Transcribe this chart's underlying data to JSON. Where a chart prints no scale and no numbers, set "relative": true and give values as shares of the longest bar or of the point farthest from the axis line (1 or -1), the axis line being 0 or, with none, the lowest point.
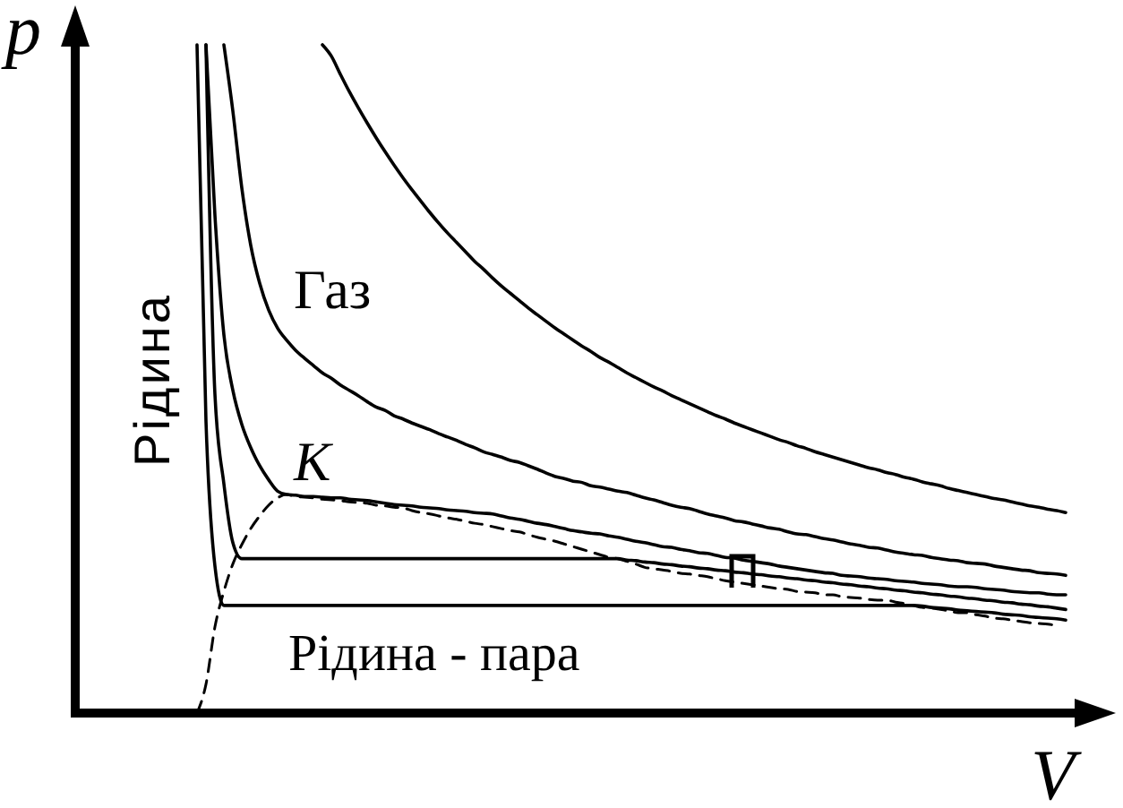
{
  "chart_data": {
    "type": "line",
    "relative": true,
    "line_style": "solid",
    "xlabel": "V",
    "ylabel": "p",
    "annotations": [
      "Рідина",
      "Газ",
      "К",
      "Рідина - пара"
    ],
    "categories": [
      null,
      null,
      null,
      null,
      null,
      null,
      null,
      null,
      null,
      null,
      null,
      null,
      null,
      null,
      null,
      null,
      null,
      null,
      null,
      null,
      null,
      null,
      null,
      null,
      null,
      null,
      null,
      null,
      null,
      null,
      null,
      null,
      null,
      null,
      null,
      null,
      null,
      null,
      null,
      null,
      null,
      null,
      null,
      null,
      null,
      null,
      null,
      null,
      null,
      null,
      null,
      null,
      null,
      null,
      null,
      null,
      null,
      null,
      null,
      null,
      null,
      null,
      null,
      null,
      null,
      null,
      null,
      null,
      null,
      null,
      null,
      null,
      null,
      null,
      null,
      null,
      null,
      null,
      null,
      null,
      null,
      null,
      null,
      null,
      null,
      null,
      null,
      null,
      null,
      null,
      null,
      null,
      null,
      null,
      null,
      null,
      null,
      null
    ],
    "series": [
      {
        "color": "#000000",
        "values": [
          null,
          null,
          null,
          null,
          null,
          null,
          null,
          null,
          null,
          null,
          null,
          null,
          null,
          null,
          1,
          0.983,
          0.956,
          0.93,
          0.906,
          0.883,
          0.861,
          0.84,
          0.82,
          0.801,
          0.783,
          0.766,
          0.749,
          0.733,
          0.718,
          0.704,
          0.69,
          0.676,
          0.664,
          0.651,
          0.639,
          0.628,
          0.617,
          0.606,
          0.596,
          0.586,
          0.576,
          0.567,
          0.558,
          0.549,
          0.541,
          0.532,
          0.525,
          0.517,
          0.509,
          0.502,
          0.495,
          0.488,
          0.482,
          0.475,
          0.469,
          0.463,
          0.457,
          0.451,
          0.445,
          0.44,
          0.434,
          0.429,
          0.424,
          0.419,
          0.414,
          0.409,
          0.405,
          0.4,
          0.396,
          0.391,
          0.387,
          0.383,
          0.379,
          0.375,
          0.371,
          0.367,
          0.364,
          0.36,
          0.357,
          0.353,
          0.35,
          0.346,
          0.343,
          0.34,
          0.336,
          0.333,
          0.33,
          0.327,
          0.324,
          0.321,
          0.319,
          0.316,
          0.313,
          0.31,
          0.308,
          0.305,
          0.303,
          0.3
        ]
      },
      {
        "color": "#000000",
        "values": [
          null,
          null,
          null,
          1,
          0.901,
          0.786,
          0.7,
          0.643,
          0.603,
          0.576,
          0.558,
          0.543,
          0.531,
          0.52,
          0.509,
          0.501,
          0.491,
          0.483,
          0.475,
          0.466,
          0.458,
          0.453,
          0.445,
          0.44,
          0.434,
          0.429,
          0.424,
          0.418,
          0.413,
          0.408,
          0.402,
          0.397,
          0.391,
          0.387,
          0.383,
          0.378,
          0.375,
          0.37,
          0.365,
          0.359,
          0.354,
          0.351,
          0.347,
          0.345,
          0.34,
          0.338,
          0.335,
          0.332,
          0.33,
          0.326,
          0.322,
          0.319,
          0.315,
          0.311,
          0.308,
          0.306,
          0.302,
          0.298,
          0.295,
          0.292,
          0.288,
          0.286,
          0.283,
          0.28,
          0.277,
          0.275,
          0.271,
          0.268,
          0.267,
          0.264,
          0.261,
          0.259,
          0.256,
          0.253,
          0.251,
          0.248,
          0.247,
          0.244,
          0.241,
          0.239,
          0.237,
          0.236,
          0.233,
          0.231,
          0.229,
          0.228,
          0.225,
          0.224,
          0.223,
          0.22,
          0.218,
          0.216,
          0.214,
          0.213,
          0.21,
          0.209,
          0.208,
          0.206
        ]
      },
      {
        "color": "#000000",
        "values": [
          null,
          1,
          0.745,
          0.566,
          0.483,
          0.432,
          0.397,
          0.37,
          0.349,
          0.332,
          0.327,
          0.326,
          0.324,
          0.324,
          0.323,
          0.322,
          0.322,
          0.32,
          0.319,
          0.318,
          0.316,
          0.314,
          0.312,
          0.311,
          0.31,
          0.308,
          0.307,
          0.306,
          0.304,
          0.303,
          0.302,
          0.3,
          0.299,
          0.298,
          0.295,
          0.292,
          0.29,
          0.287,
          0.284,
          0.282,
          0.279,
          0.276,
          0.273,
          0.271,
          0.269,
          0.268,
          0.265,
          0.263,
          0.26,
          0.257,
          0.255,
          0.252,
          0.249,
          0.248,
          0.245,
          0.243,
          0.24,
          0.239,
          0.236,
          0.233,
          0.232,
          0.229,
          0.227,
          0.225,
          0.223,
          0.22,
          0.218,
          0.216,
          0.214,
          0.212,
          0.21,
          0.209,
          0.206,
          0.205,
          0.204,
          0.202,
          0.201,
          0.2,
          0.198,
          0.197,
          0.196,
          0.194,
          0.193,
          0.192,
          0.19,
          0.189,
          0.189,
          0.188,
          0.186,
          0.185,
          0.184,
          0.182,
          0.181,
          0.18,
          0.18,
          0.178,
          0.177,
          0.177
        ]
      },
      {
        "color": "#000000",
        "values": [
          null,
          1,
          0.477,
          0.343,
          0.255,
          0.231,
          0.231,
          0.231,
          0.231,
          0.231,
          0.231,
          0.231,
          0.231,
          0.231,
          0.231,
          0.231,
          0.231,
          0.231,
          0.231,
          0.231,
          0.231,
          0.231,
          0.231,
          0.231,
          0.231,
          0.231,
          0.231,
          0.231,
          0.231,
          0.231,
          0.231,
          0.231,
          0.231,
          0.231,
          0.231,
          0.231,
          0.231,
          0.231,
          0.231,
          0.231,
          0.231,
          0.231,
          0.231,
          0.231,
          0.231,
          0.231,
          0.231,
          0.231,
          0.229,
          0.228,
          0.226,
          0.225,
          0.223,
          0.222,
          0.22,
          0.219,
          0.217,
          0.216,
          0.214,
          0.213,
          0.211,
          0.21,
          0.208,
          0.207,
          0.205,
          0.204,
          0.202,
          0.201,
          0.199,
          0.198,
          0.196,
          0.195,
          0.193,
          0.192,
          0.19,
          0.189,
          0.187,
          0.186,
          0.184,
          0.183,
          0.181,
          0.18,
          0.178,
          0.177,
          0.175,
          0.174,
          0.172,
          0.171,
          0.169,
          0.168,
          0.166,
          0.165,
          0.163,
          0.162,
          0.16,
          0.159,
          0.157,
          0.155
        ]
      },
      {
        "color": "#000000",
        "values": [
          1,
          0.437,
          0.22,
          0.161,
          0.161,
          0.161,
          0.161,
          0.161,
          0.161,
          0.161,
          0.161,
          0.161,
          0.161,
          0.161,
          0.161,
          0.161,
          0.161,
          0.161,
          0.161,
          0.161,
          0.161,
          0.161,
          0.161,
          0.161,
          0.161,
          0.161,
          0.161,
          0.161,
          0.161,
          0.161,
          0.161,
          0.161,
          0.161,
          0.161,
          0.161,
          0.161,
          0.161,
          0.161,
          0.161,
          0.161,
          0.161,
          0.161,
          0.161,
          0.161,
          0.161,
          0.161,
          0.161,
          0.161,
          0.161,
          0.161,
          0.161,
          0.161,
          0.161,
          0.161,
          0.161,
          0.161,
          0.161,
          0.161,
          0.161,
          0.161,
          0.161,
          0.161,
          0.161,
          0.161,
          0.161,
          0.161,
          0.161,
          0.161,
          0.161,
          0.161,
          0.161,
          0.161,
          0.161,
          0.161,
          0.161,
          0.161,
          0.161,
          0.161,
          0.161,
          0.161,
          0.161,
          0.16,
          0.158,
          0.157,
          0.156,
          0.154,
          0.153,
          0.152,
          0.151,
          0.15,
          0.148,
          0.147,
          0.146,
          0.144,
          0.143,
          0.142,
          0.141,
          0.139
        ]
      },
      {
        "color": "#000000",
        "line_style": "dashed",
        "values": [
          0,
          0.043,
          0.129,
          0.182,
          0.223,
          0.252,
          0.276,
          0.295,
          0.311,
          0.322,
          0.327,
          0.324,
          0.323,
          0.322,
          0.32,
          0.319,
          0.318,
          0.316,
          0.315,
          0.314,
          0.311,
          0.31,
          0.308,
          0.307,
          0.303,
          0.3,
          0.298,
          0.295,
          0.292,
          0.29,
          0.287,
          0.284,
          0.282,
          0.279,
          0.276,
          0.273,
          0.271,
          0.267,
          0.263,
          0.26,
          0.257,
          0.253,
          0.249,
          0.245,
          0.241,
          0.237,
          0.233,
          0.231,
          0.227,
          0.223,
          0.218,
          0.216,
          0.214,
          0.212,
          0.209,
          0.208,
          0.206,
          0.204,
          0.201,
          0.198,
          0.196,
          0.194,
          0.192,
          0.19,
          0.188,
          0.186,
          0.185,
          0.182,
          0.181,
          0.18,
          0.177,
          0.177,
          0.174,
          0.173,
          0.172,
          0.17,
          0.169,
          0.169,
          0.166,
          0.164,
          0.161,
          0.158,
          0.157,
          0.155,
          0.153,
          0.15,
          0.15,
          0.147,
          0.145,
          0.142,
          0.141,
          0.139,
          0.137,
          0.135,
          0.134,
          0.133,
          0.131,
          null
        ]
      }
    ]
  }
}
